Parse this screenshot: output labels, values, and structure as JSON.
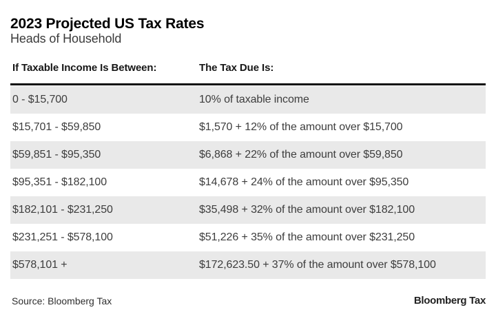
{
  "chart_data": {
    "type": "table",
    "title": "2023 Projected US Tax Rates",
    "subtitle": "Heads of Household",
    "columns": [
      "If Taxable Income Is Between:",
      "The Tax Due Is:"
    ],
    "rows": [
      {
        "income": "0 - $15,700",
        "tax": "10% of taxable income"
      },
      {
        "income": "$15,701 - $59,850",
        "tax": "$1,570 + 12% of the amount over $15,700"
      },
      {
        "income": "$59,851 - $95,350",
        "tax": "$6,868 + 22% of the amount over $59,850"
      },
      {
        "income": "$95,351 - $182,100",
        "tax": "$14,678 + 24% of the amount over $95,350"
      },
      {
        "income": "$182,101 - $231,250",
        "tax": "$35,498 + 32% of the amount over $182,100"
      },
      {
        "income": "$231,251 - $578,100",
        "tax": "$51,226 + 35% of the amount over $231,250"
      },
      {
        "income": "$578,101 +",
        "tax": "$172,623.50 + 37% of the amount over $578,100"
      }
    ],
    "source": "Source: Bloomberg Tax",
    "brand": "Bloomberg Tax",
    "layout": {
      "stripe_pattern": "odd-rows-shaded",
      "grid": "none",
      "header_rule": "thick-black"
    }
  },
  "colors": {
    "row_stripe": "#e9e9e9",
    "title_text": "#000000",
    "subtitle_text": "#3a3a3a",
    "body_text": "#3d3d3d",
    "header_rule": "#0b0b0b",
    "background": "#ffffff"
  }
}
